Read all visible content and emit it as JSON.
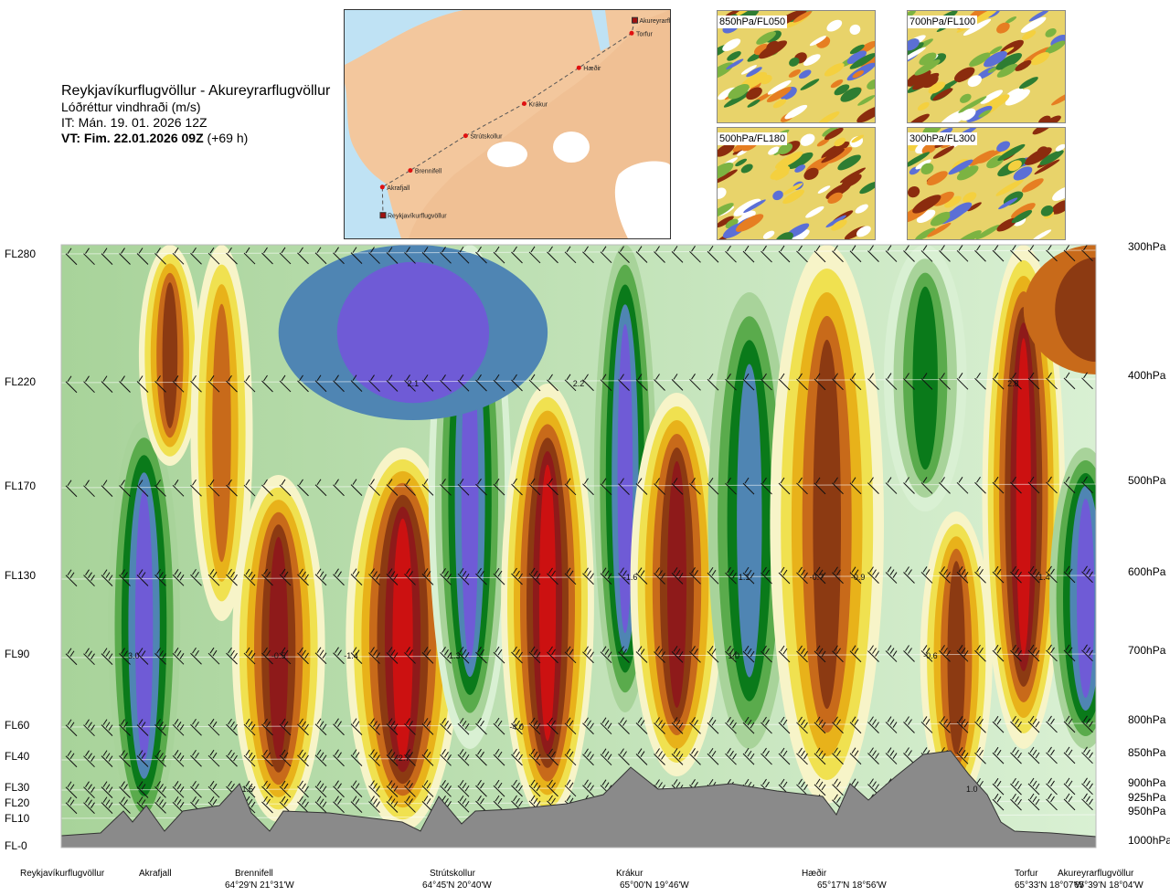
{
  "header": {
    "route": "Reykjavíkurflugvöllur - Akureyrarflugvöllur",
    "quantity": "Lóðréttur vindhraði (m/s)",
    "issue_time": "IT: Mán. 19. 01. 2026 12Z",
    "valid_time_bold": "VT: Fim. 22.01.2026 09Z",
    "valid_time_rest": " (+69 h)"
  },
  "route_map": {
    "points": [
      {
        "name": "Akureyrarflugvöllur",
        "lon": -18.07,
        "lat": 65.65,
        "marker": "square"
      },
      {
        "name": "Torfur",
        "lon": -18.12,
        "lat": 65.55,
        "marker": "dot"
      },
      {
        "name": "Hæðir",
        "lon": -18.93,
        "lat": 65.28,
        "marker": "dot"
      },
      {
        "name": "Krákur",
        "lon": -19.77,
        "lat": 65.0,
        "marker": "dot"
      },
      {
        "name": "Strútskollur",
        "lon": -20.67,
        "lat": 64.75,
        "marker": "dot"
      },
      {
        "name": "Brennifell",
        "lon": -21.52,
        "lat": 64.48,
        "marker": "dot"
      },
      {
        "name": "Akrafjall",
        "lon": -21.95,
        "lat": 64.35,
        "marker": "dot"
      },
      {
        "name": "Reykjavíkurflugvöllur",
        "lon": -21.94,
        "lat": 64.13,
        "marker": "square"
      }
    ]
  },
  "thumbnails": [
    {
      "label": "850hPa/FL050"
    },
    {
      "label": "700hPa/FL100"
    },
    {
      "label": "500hPa/FL180"
    },
    {
      "label": "300hPa/FL300"
    }
  ],
  "chart_data": {
    "type": "heatmap",
    "title": "Lóðréttur vindhraði (m/s)",
    "xlabel": "",
    "ylabel": "",
    "flight_levels": [
      {
        "label": "FL280",
        "value": 280
      },
      {
        "label": "FL220",
        "value": 220
      },
      {
        "label": "FL170",
        "value": 170
      },
      {
        "label": "FL130",
        "value": 130
      },
      {
        "label": "FL90",
        "value": 90
      },
      {
        "label": "FL60",
        "value": 60
      },
      {
        "label": "FL40",
        "value": 40
      },
      {
        "label": "FL30",
        "value": 30
      },
      {
        "label": "FL20",
        "value": 20
      },
      {
        "label": "FL10",
        "value": 10
      },
      {
        "label": "FL-0",
        "value": 0
      }
    ],
    "pressure_levels": [
      {
        "label": "300hPa",
        "value": 300
      },
      {
        "label": "400hPa",
        "value": 400
      },
      {
        "label": "500hPa",
        "value": 500
      },
      {
        "label": "600hPa",
        "value": 600
      },
      {
        "label": "700hPa",
        "value": 700
      },
      {
        "label": "800hPa",
        "value": 800
      },
      {
        "label": "850hPa",
        "value": 850
      },
      {
        "label": "900hPa",
        "value": 900
      },
      {
        "label": "925hPa",
        "value": 925
      },
      {
        "label": "950hPa",
        "value": 950
      },
      {
        "label": "1000hPa",
        "value": 1000
      }
    ],
    "locations": [
      {
        "name": "Reykjavíkurflugvöllur",
        "coord": ""
      },
      {
        "name": "Akrafjall",
        "coord": ""
      },
      {
        "name": "Brennifell",
        "coord": "64°29'N 21°31'W"
      },
      {
        "name": "Strútskollur",
        "coord": "64°45'N 20°40'W"
      },
      {
        "name": "Krákur",
        "coord": "65°00'N 19°46'W"
      },
      {
        "name": "Hæðir",
        "coord": "65°17'N 18°56'W"
      },
      {
        "name": "Torfur",
        "coord": "65°33'N 18°07'W"
      },
      {
        "name": "Akureyrarflugvöllur",
        "coord": "65°39'N 18°04'W"
      }
    ],
    "value_labels": [
      {
        "text": "2.1",
        "pos": 0.34,
        "fl": 220
      },
      {
        "text": "2.2",
        "pos": 0.5,
        "fl": 220
      },
      {
        "text": "2.8",
        "pos": 0.92,
        "fl": 220
      },
      {
        "text": "-1.6",
        "pos": 0.55,
        "fl": 130
      },
      {
        "text": "1.1",
        "pos": 0.66,
        "fl": 130
      },
      {
        "text": "-0.7",
        "pos": 0.73,
        "fl": 130
      },
      {
        "text": "-0.9",
        "pos": 0.77,
        "fl": 130
      },
      {
        "text": "1.4",
        "pos": 0.95,
        "fl": 130
      },
      {
        "text": "3.0",
        "pos": 0.07,
        "fl": 90
      },
      {
        "text": "-0.5",
        "pos": 0.21,
        "fl": 90
      },
      {
        "text": "-1.4",
        "pos": 0.28,
        "fl": 90
      },
      {
        "text": "1.3",
        "pos": 0.38,
        "fl": 90
      },
      {
        "text": "1.0",
        "pos": 0.65,
        "fl": 90
      },
      {
        "text": "-0.6",
        "pos": 0.84,
        "fl": 90
      },
      {
        "text": "-4.0",
        "pos": 0.44,
        "fl": 60
      },
      {
        "text": "-2.7",
        "pos": 0.33,
        "fl": 40
      },
      {
        "text": "1.6",
        "pos": 0.18,
        "fl": 30
      },
      {
        "text": "1.0",
        "pos": 0.88,
        "fl": 30
      }
    ],
    "color_scale": [
      "#6f5bd6",
      "#4f85b3",
      "#3f8e5a",
      "#0a7a1a",
      "#5aab4c",
      "#a8d39a",
      "#d9f0d3",
      "#f7f4c8",
      "#f0e150",
      "#e8b21a",
      "#c86a1a",
      "#8c3a12",
      "#8e1a1a",
      "#cc1111"
    ]
  },
  "colors": {
    "terrain": "#8a8a8a",
    "map_sea": "#bfe2f4",
    "map_land": "#f3c79d",
    "map_ice": "#ffffff",
    "route_point": "#e01010"
  }
}
